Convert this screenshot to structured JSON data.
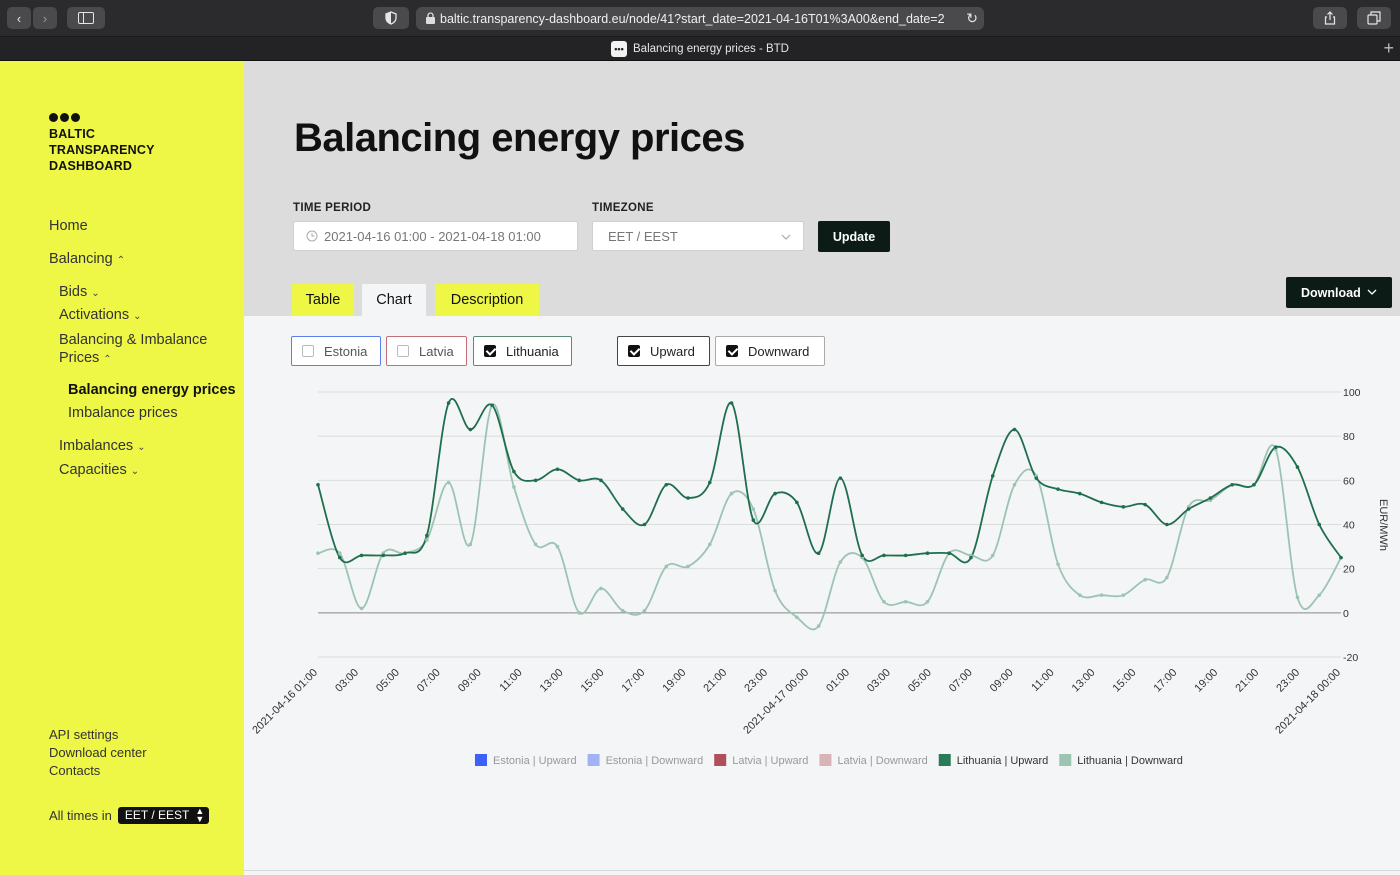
{
  "browser": {
    "url": "baltic.transparency-dashboard.eu/node/41?start_date=2021-04-16T01%3A00&end_date=2",
    "tab_title": "Balancing energy prices - BTD"
  },
  "sidebar": {
    "logo_lines": [
      "BALTIC",
      "TRANSPARENCY",
      "DASHBOARD"
    ],
    "nav": {
      "home": "Home",
      "balancing": "Balancing",
      "bids": "Bids",
      "activations": "Activations",
      "bip_line1": "Balancing & Imbalance",
      "bip_line2": "Prices",
      "balancing_energy_prices": "Balancing energy prices",
      "imbalance_prices": "Imbalance prices",
      "imbalances": "Imbalances",
      "capacities": "Capacities"
    },
    "footer": {
      "api_settings": "API settings",
      "download_center": "Download center",
      "contacts": "Contacts",
      "all_times_in": "All times in",
      "timezone": "EET / EEST"
    }
  },
  "main": {
    "title": "Balancing energy prices",
    "time_period_label": "TIME PERIOD",
    "time_period_value": "2021-04-16 01:00 - 2021-04-18 01:00",
    "timezone_label": "TIMEZONE",
    "timezone_value": "EET / EEST",
    "update_label": "Update",
    "download_label": "Download",
    "tabs": [
      "Table",
      "Chart",
      "Description"
    ],
    "filters": {
      "estonia": "Estonia",
      "latvia": "Latvia",
      "lithuania": "Lithuania",
      "upward": "Upward",
      "downward": "Downward"
    }
  },
  "chart_data": {
    "type": "line",
    "ylabel": "EUR/MWh",
    "ylim": [
      -20,
      100
    ],
    "yticks": [
      -20,
      0,
      20,
      40,
      60,
      80,
      100
    ],
    "xtick_labels": [
      "2021-04-16 01:00",
      "03:00",
      "05:00",
      "07:00",
      "09:00",
      "11:00",
      "13:00",
      "15:00",
      "17:00",
      "19:00",
      "21:00",
      "23:00",
      "2021-04-17 00:00",
      "01:00",
      "03:00",
      "05:00",
      "07:00",
      "09:00",
      "11:00",
      "13:00",
      "15:00",
      "17:00",
      "19:00",
      "21:00",
      "23:00",
      "2021-04-18 00:00"
    ],
    "legend": [
      {
        "name": "Estonia | Upward",
        "color": "#3c62f5"
      },
      {
        "name": "Estonia | Downward",
        "color": "#a3b2f5"
      },
      {
        "name": "Latvia | Upward",
        "color": "#b0505a"
      },
      {
        "name": "Latvia | Downward",
        "color": "#d9b3b6"
      },
      {
        "name": "Lithuania | Upward",
        "color": "#2a7a57"
      },
      {
        "name": "Lithuania | Downward",
        "color": "#9cc4b2"
      }
    ],
    "series": [
      {
        "name": "Lithuania | Upward",
        "color": "#1f6e4d",
        "values": [
          58,
          25,
          26,
          26,
          27,
          35,
          95,
          83,
          94,
          64,
          60,
          65,
          60,
          60,
          47,
          40,
          58,
          52,
          59,
          95,
          42,
          54,
          50,
          27,
          61,
          26,
          26,
          26,
          27,
          27,
          25,
          62,
          83,
          61,
          56,
          54,
          50,
          48,
          49,
          40,
          47,
          52,
          58,
          58,
          75,
          66,
          40,
          25
        ]
      },
      {
        "name": "Lithuania | Downward",
        "color": "#9cc4b2",
        "values": [
          27,
          27,
          2,
          27,
          27,
          33,
          59,
          31,
          94,
          57,
          31,
          30,
          0,
          11,
          1,
          1,
          21,
          21,
          31,
          54,
          47,
          10,
          -2,
          -6,
          23,
          25,
          5,
          5,
          5,
          27,
          26,
          26,
          58,
          62,
          22,
          8,
          8,
          8,
          15,
          16,
          48,
          51,
          58,
          58,
          74,
          7,
          8,
          25
        ]
      }
    ]
  }
}
